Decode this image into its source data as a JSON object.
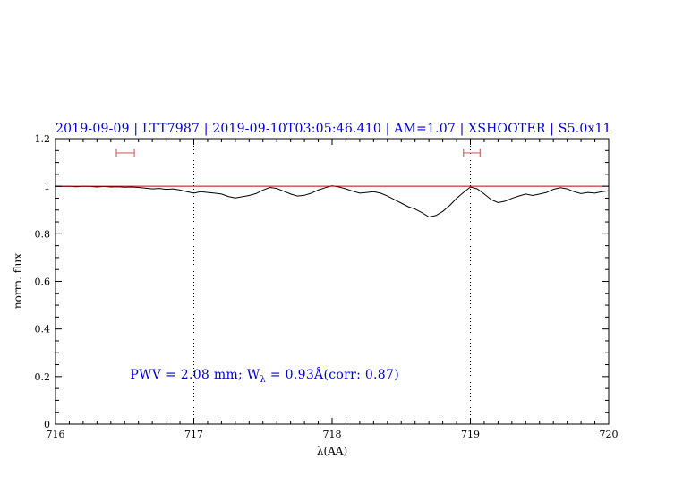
{
  "chart_data": {
    "type": "line",
    "title": "2019-09-09 | LTT7987 | 2019-09-10T03:05:46.410 | AM=1.07 | XSHOOTER | S5.0x11",
    "title_color": "#0000cc",
    "xlabel": "λ(AA)",
    "ylabel": "norm. flux",
    "xlim": [
      716,
      720
    ],
    "ylim": [
      0,
      1.2
    ],
    "xticks": [
      716,
      717,
      718,
      719,
      720
    ],
    "xtick_labels": [
      "716",
      "717",
      "718",
      "719",
      "720"
    ],
    "yticks": [
      0,
      0.2,
      0.4,
      0.6,
      0.8,
      1,
      1.2
    ],
    "ytick_labels": [
      "0",
      "0.2",
      "0.4",
      "0.6",
      "0.8",
      "1",
      "1.2"
    ],
    "x_minor_step": 0.1,
    "y_minor_step": 0.05,
    "grid": "off",
    "reference_vlines": [
      717,
      719
    ],
    "continuum_line": {
      "y": 1.0,
      "color": "#cc0000"
    },
    "range_markers": [
      {
        "x_start": 716.44,
        "x_end": 716.57,
        "y": 1.14
      },
      {
        "x_start": 718.95,
        "x_end": 719.07,
        "y": 1.14
      }
    ],
    "marker_color": "#d06a6a",
    "series": [
      {
        "name": "normalized spectrum",
        "color": "#000000",
        "x": [
          716.0,
          716.05,
          716.1,
          716.15,
          716.2,
          716.25,
          716.3,
          716.35,
          716.4,
          716.45,
          716.5,
          716.55,
          716.6,
          716.65,
          716.7,
          716.75,
          716.8,
          716.85,
          716.9,
          716.95,
          717.0,
          717.05,
          717.1,
          717.15,
          717.2,
          717.25,
          717.3,
          717.35,
          717.4,
          717.45,
          717.5,
          717.55,
          717.6,
          717.65,
          717.7,
          717.75,
          717.8,
          717.85,
          717.9,
          717.95,
          718.0,
          718.05,
          718.1,
          718.15,
          718.2,
          718.25,
          718.3,
          718.35,
          718.4,
          718.45,
          718.5,
          718.55,
          718.6,
          718.65,
          718.7,
          718.75,
          718.8,
          718.85,
          718.9,
          718.95,
          719.0,
          719.05,
          719.1,
          719.15,
          719.2,
          719.25,
          719.3,
          719.35,
          719.4,
          719.45,
          719.5,
          719.55,
          719.6,
          719.65,
          719.7,
          719.75,
          719.8,
          719.85,
          719.9,
          719.95,
          720.0
        ],
        "y": [
          1.0,
          0.999,
          1.0,
          0.998,
          1.0,
          0.999,
          0.997,
          0.999,
          0.997,
          0.998,
          0.996,
          0.997,
          0.995,
          0.992,
          0.989,
          0.991,
          0.987,
          0.989,
          0.984,
          0.977,
          0.971,
          0.977,
          0.974,
          0.971,
          0.967,
          0.957,
          0.951,
          0.956,
          0.961,
          0.969,
          0.984,
          0.995,
          0.991,
          0.979,
          0.967,
          0.959,
          0.962,
          0.971,
          0.984,
          0.994,
          1.002,
          0.997,
          0.989,
          0.979,
          0.971,
          0.974,
          0.977,
          0.971,
          0.959,
          0.944,
          0.929,
          0.914,
          0.904,
          0.889,
          0.871,
          0.877,
          0.894,
          0.919,
          0.949,
          0.974,
          0.997,
          0.989,
          0.967,
          0.944,
          0.931,
          0.937,
          0.949,
          0.959,
          0.967,
          0.961,
          0.967,
          0.974,
          0.987,
          0.994,
          0.989,
          0.977,
          0.969,
          0.974,
          0.971,
          0.977,
          0.981
        ]
      }
    ],
    "annotation": {
      "part1": "PWV = 2.08 mm; W",
      "sub": "λ",
      "part2": " = 0.93Å(corr: 0.87)",
      "x": 716.54,
      "y": 0.2,
      "color": "#0000cc"
    }
  }
}
